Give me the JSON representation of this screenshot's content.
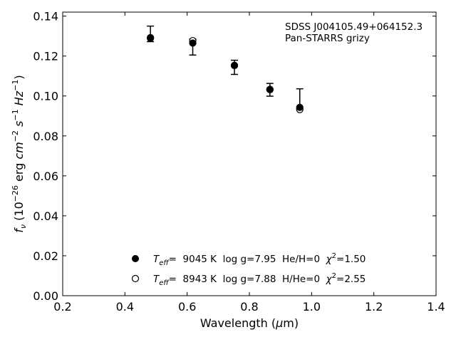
{
  "chart_data": {
    "type": "scatter",
    "xlabel": "Wavelength (μm)",
    "xlabel_parts": {
      "pre": "Wavelength (",
      "mu": "μ",
      "post": "m)"
    },
    "ylabel_parts": {
      "f": "f",
      "nu": "ν",
      "open": " (10",
      "exp1": "−26",
      "erg": " erg ",
      "cm": "cm",
      "exp2": "−2",
      "s": "s",
      "exp3": "−1",
      "hz": "Hz",
      "exp4": "−1",
      "close": ")"
    },
    "xlim": [
      0.2,
      1.4
    ],
    "ylim": [
      0.0,
      0.142
    ],
    "xticks": [
      "0.2",
      "0.4",
      "0.6",
      "0.8",
      "1.0",
      "1.2",
      "1.4"
    ],
    "yticks": [
      "0.00",
      "0.02",
      "0.04",
      "0.06",
      "0.08",
      "0.10",
      "0.12",
      "0.14"
    ],
    "annotation": [
      "SDSS J004105.49+064152.3",
      "Pan-STARRS grizy"
    ],
    "observed": {
      "x": [
        0.482,
        0.618,
        0.752,
        0.866,
        0.962
      ],
      "y_low": [
        0.1272,
        0.1205,
        0.1108,
        0.0999,
        0.0935
      ],
      "y_high": [
        0.135,
        0.1285,
        0.1179,
        0.1063,
        0.1036
      ]
    },
    "series": [
      {
        "name": "He/H=0",
        "marker": "filled",
        "x": [
          0.482,
          0.618,
          0.752,
          0.866,
          0.962
        ],
        "y": [
          0.1292,
          0.1265,
          0.1153,
          0.1032,
          0.0943
        ],
        "legend": {
          "teff_T": "T",
          "teff_sub": "eff",
          "text": "=  9045 K  log g=7.95  He/H=0  ",
          "chi": "χ",
          "chi_exp": "2",
          "chi_val": "=1.50"
        }
      },
      {
        "name": "H/He=0",
        "marker": "open",
        "x": [
          0.482,
          0.618,
          0.752,
          0.866,
          0.962
        ],
        "y": [
          0.1289,
          0.1277,
          0.1153,
          0.1033,
          0.0932
        ],
        "legend": {
          "teff_T": "T",
          "teff_sub": "eff",
          "text": "=  8943 K  log g=7.88  H/He=0  ",
          "chi": "χ",
          "chi_exp": "2",
          "chi_val": "=2.55"
        }
      }
    ],
    "colors": {
      "marker": "#000000",
      "axes": "#000000",
      "background": "#ffffff"
    },
    "grid": false,
    "legend_position": "bottom-center"
  }
}
